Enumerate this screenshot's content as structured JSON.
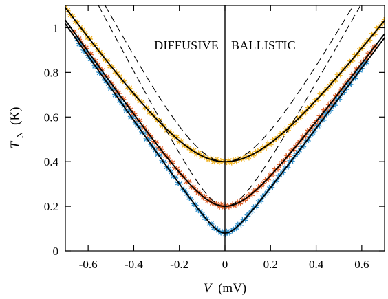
{
  "chart_data": {
    "type": "scatter",
    "title": "",
    "xlabel": {
      "symbol": "V",
      "unit": "(mV)"
    },
    "ylabel": {
      "symbol": "T",
      "subscript": "N",
      "unit": "(K)"
    },
    "xlim": [
      -0.7,
      0.7
    ],
    "ylim": [
      0,
      1.1
    ],
    "xticks": [
      -0.6,
      -0.4,
      -0.2,
      0,
      0.2,
      0.4,
      0.6
    ],
    "xtick_labels": [
      "-0.6",
      "-0.4",
      "-0.2",
      "0",
      "0.2",
      "0.4",
      "0.6"
    ],
    "yticks": [
      0,
      0.2,
      0.4,
      0.6,
      0.8,
      1
    ],
    "ytick_labels": [
      "0",
      "0.2",
      "0.4",
      "0.6",
      "0.8",
      "1"
    ],
    "grid": false,
    "legend": "none",
    "region_labels": {
      "left": "DIFFUSIVE",
      "right": "BALLISTIC"
    },
    "vertical_line_x": 0,
    "series": [
      {
        "marker": "star",
        "color": "#F0B323",
        "T0": 0.4,
        "x_range": [
          -0.7,
          0.7
        ],
        "points": 130
      },
      {
        "marker": "star",
        "color": "#E0622B",
        "T0": 0.2,
        "x_range": [
          -0.66,
          0.66
        ],
        "points": 130
      },
      {
        "marker": "star",
        "color": "#2E8FCB",
        "T0": 0.08,
        "x_range": [
          -0.65,
          0.62
        ],
        "points": 130
      }
    ],
    "fit_curves": {
      "style": "solid",
      "color": "#000000",
      "left_slope": 1.45,
      "right_slope": 1.36,
      "T0": [
        0.4,
        0.2,
        0.08
      ]
    },
    "limit_curves": {
      "style": "dashed",
      "color": "#000000",
      "left_slope": 1.95,
      "right_slope": 1.82,
      "T0": [
        0.4,
        0.2
      ]
    }
  }
}
